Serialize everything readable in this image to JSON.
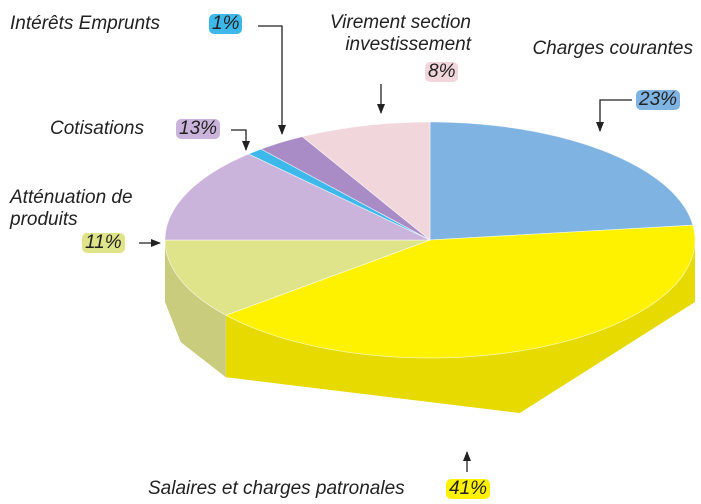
{
  "chart_data": {
    "type": "pie3d",
    "categories": [
      "Charges courantes",
      "Salaires et charges patronales",
      "Atténuation de produits",
      "Cotisations",
      "Intérêts Emprunts",
      null,
      "Virement section investissement"
    ],
    "values": [
      23,
      41,
      11,
      13,
      1,
      3,
      8
    ],
    "value_labels": [
      "23%",
      "41%",
      "11%",
      "13%",
      "1%",
      null,
      "8%"
    ],
    "colors": [
      "#7fb3e2",
      "#fff200",
      "#dfe38a",
      "#cbb4dc",
      "#3cb8ea",
      "#a98bc6",
      "#f1d6dc"
    ]
  }
}
